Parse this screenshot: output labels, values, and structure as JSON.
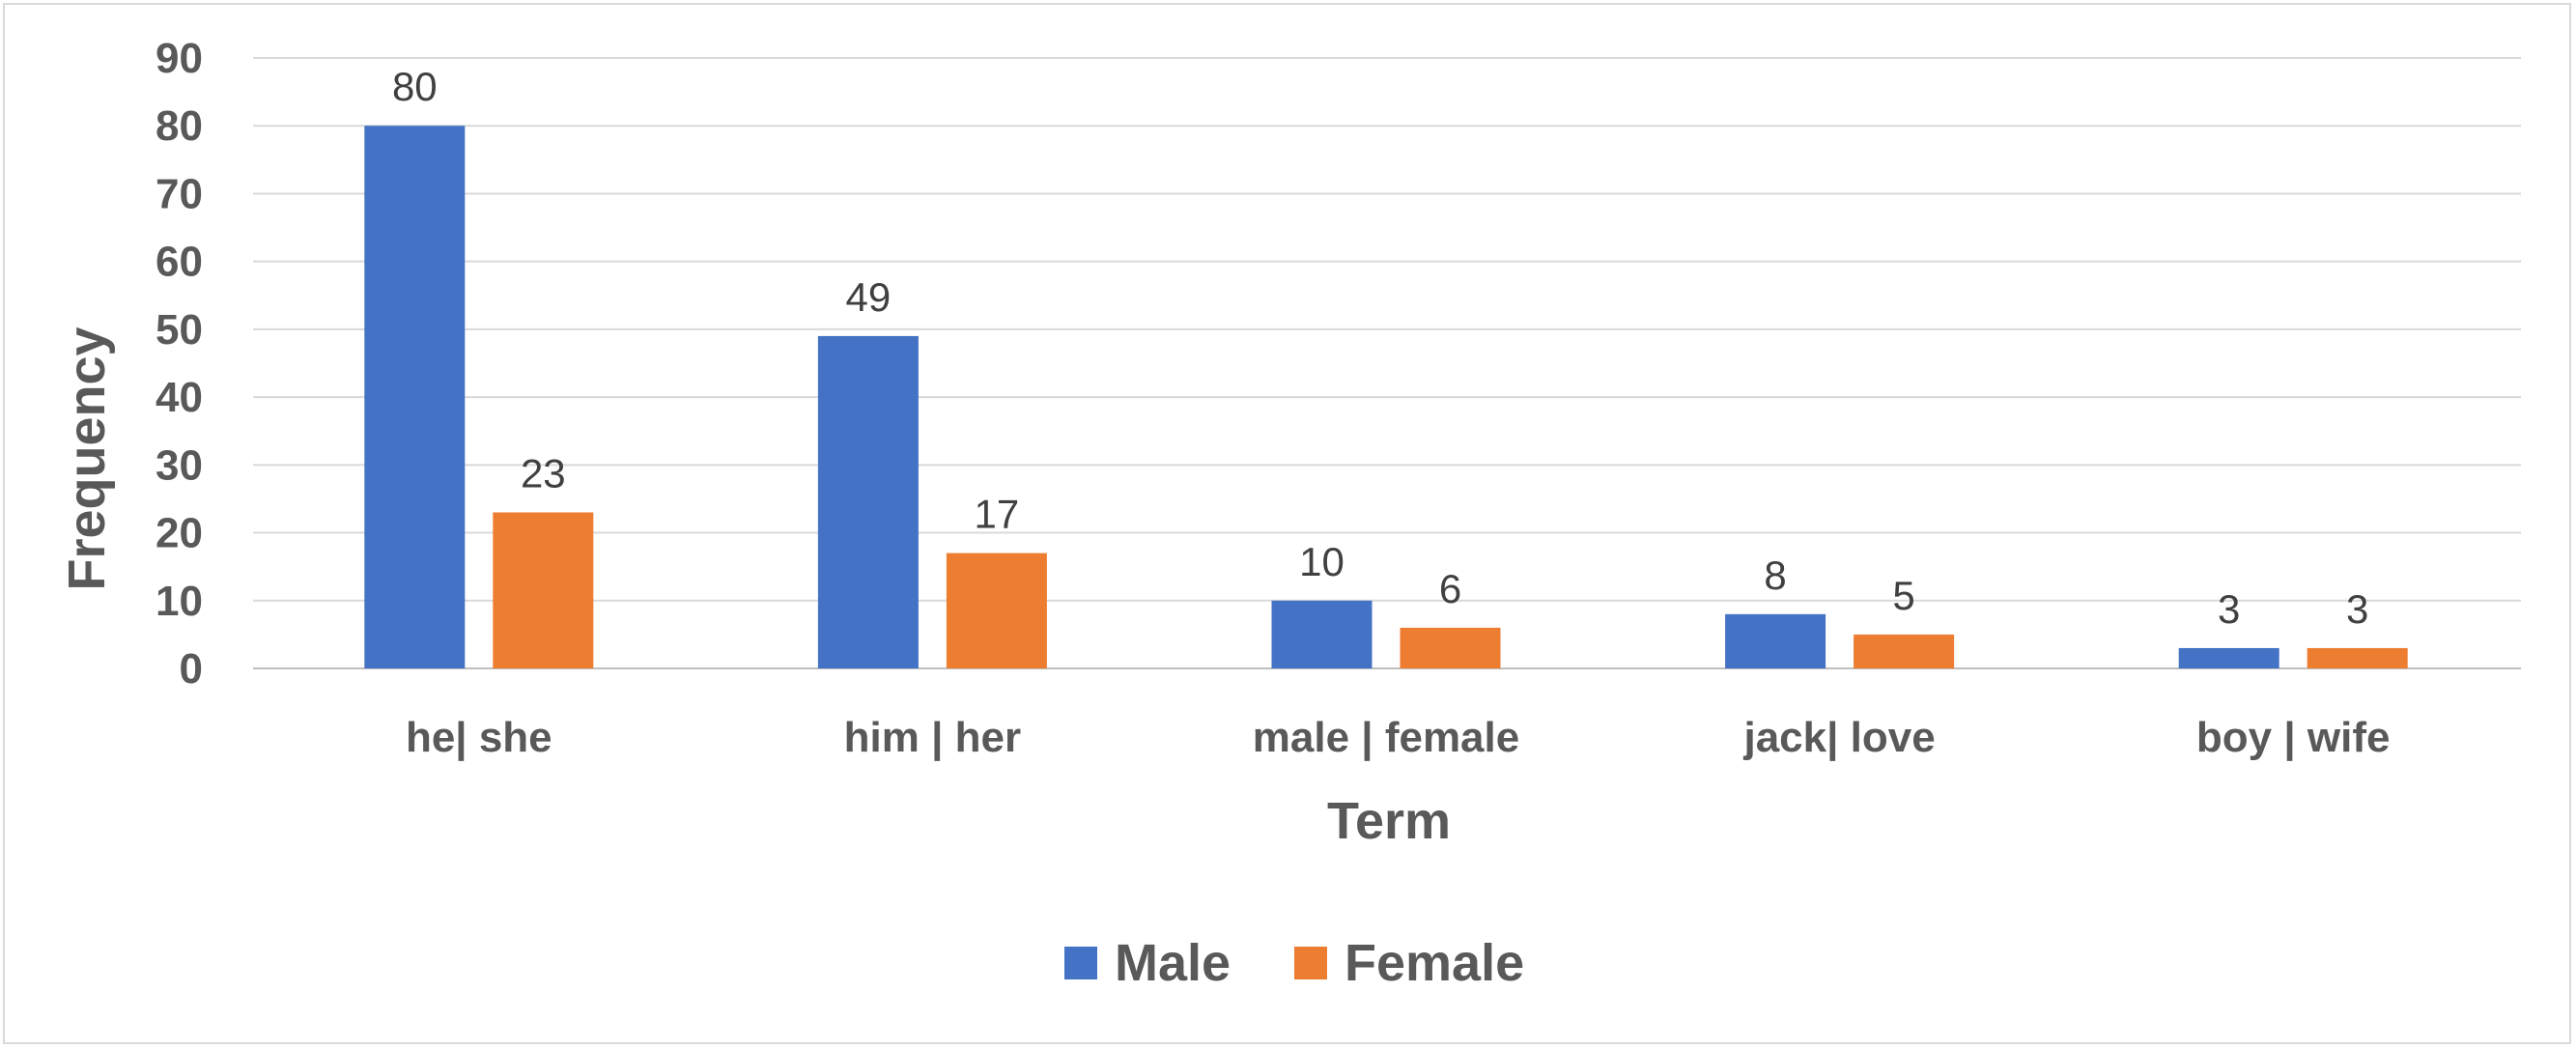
{
  "chart_data": {
    "type": "bar",
    "categories": [
      "he| she",
      "him | her",
      "male | female",
      "jack| love",
      "boy | wife"
    ],
    "series": [
      {
        "name": "Male",
        "values": [
          80,
          49,
          10,
          8,
          3
        ],
        "color": "#4472c4"
      },
      {
        "name": "Female",
        "values": [
          23,
          17,
          6,
          5,
          3
        ],
        "color": "#ed7d31"
      }
    ],
    "title": "",
    "xlabel": "Term",
    "ylabel": "Frequency",
    "ylim": [
      0,
      90
    ],
    "yticks": [
      0,
      10,
      20,
      30,
      40,
      50,
      60,
      70,
      80,
      90
    ],
    "grid": true,
    "legend": "bottom",
    "data_labels": true
  },
  "colors": {
    "grid": "#d9d9d9",
    "axis": "#bfbfbf",
    "text": "#595959"
  }
}
